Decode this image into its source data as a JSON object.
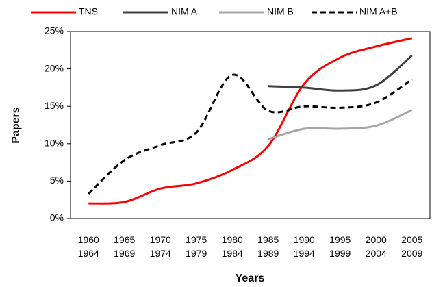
{
  "chart_data": {
    "type": "line",
    "x_label": "Years",
    "y_label": "Papers",
    "categories": [
      [
        "1960",
        "1964"
      ],
      [
        "1965",
        "1969"
      ],
      [
        "1970",
        "1974"
      ],
      [
        "1975",
        "1979"
      ],
      [
        "1980",
        "1984"
      ],
      [
        "1985",
        "1989"
      ],
      [
        "1990",
        "1994"
      ],
      [
        "1995",
        "1999"
      ],
      [
        "2000",
        "2004"
      ],
      [
        "2005",
        "2009"
      ]
    ],
    "series": [
      {
        "name": "TNS",
        "color": "#ff0000",
        "style": "solid",
        "values": [
          2.0,
          2.2,
          4.0,
          4.7,
          6.5,
          9.7,
          18.0,
          21.5,
          23.0,
          24.1
        ]
      },
      {
        "name": "NIM A",
        "color": "#404040",
        "style": "solid",
        "values": [
          null,
          null,
          null,
          null,
          null,
          17.7,
          17.5,
          17.1,
          17.8,
          21.8
        ]
      },
      {
        "name": "NIM B",
        "color": "#a6a6a6",
        "style": "solid",
        "values": [
          null,
          null,
          null,
          null,
          null,
          10.6,
          12.0,
          12.0,
          12.4,
          14.5
        ]
      },
      {
        "name": "NIM A+B",
        "color": "#000000",
        "style": "dashed",
        "values": [
          3.3,
          7.8,
          9.8,
          11.5,
          19.2,
          14.4,
          15.0,
          14.8,
          15.5,
          18.6
        ]
      }
    ],
    "ylim": [
      0,
      25
    ],
    "yticks": [
      {
        "value": 0,
        "label": "0%"
      },
      {
        "value": 5,
        "label": "5%"
      },
      {
        "value": 10,
        "label": "10%"
      },
      {
        "value": 15,
        "label": "15%"
      },
      {
        "value": 20,
        "label": "20%"
      },
      {
        "value": 25,
        "label": "25%"
      }
    ],
    "smooth": true,
    "grid": false,
    "legend": "top"
  }
}
